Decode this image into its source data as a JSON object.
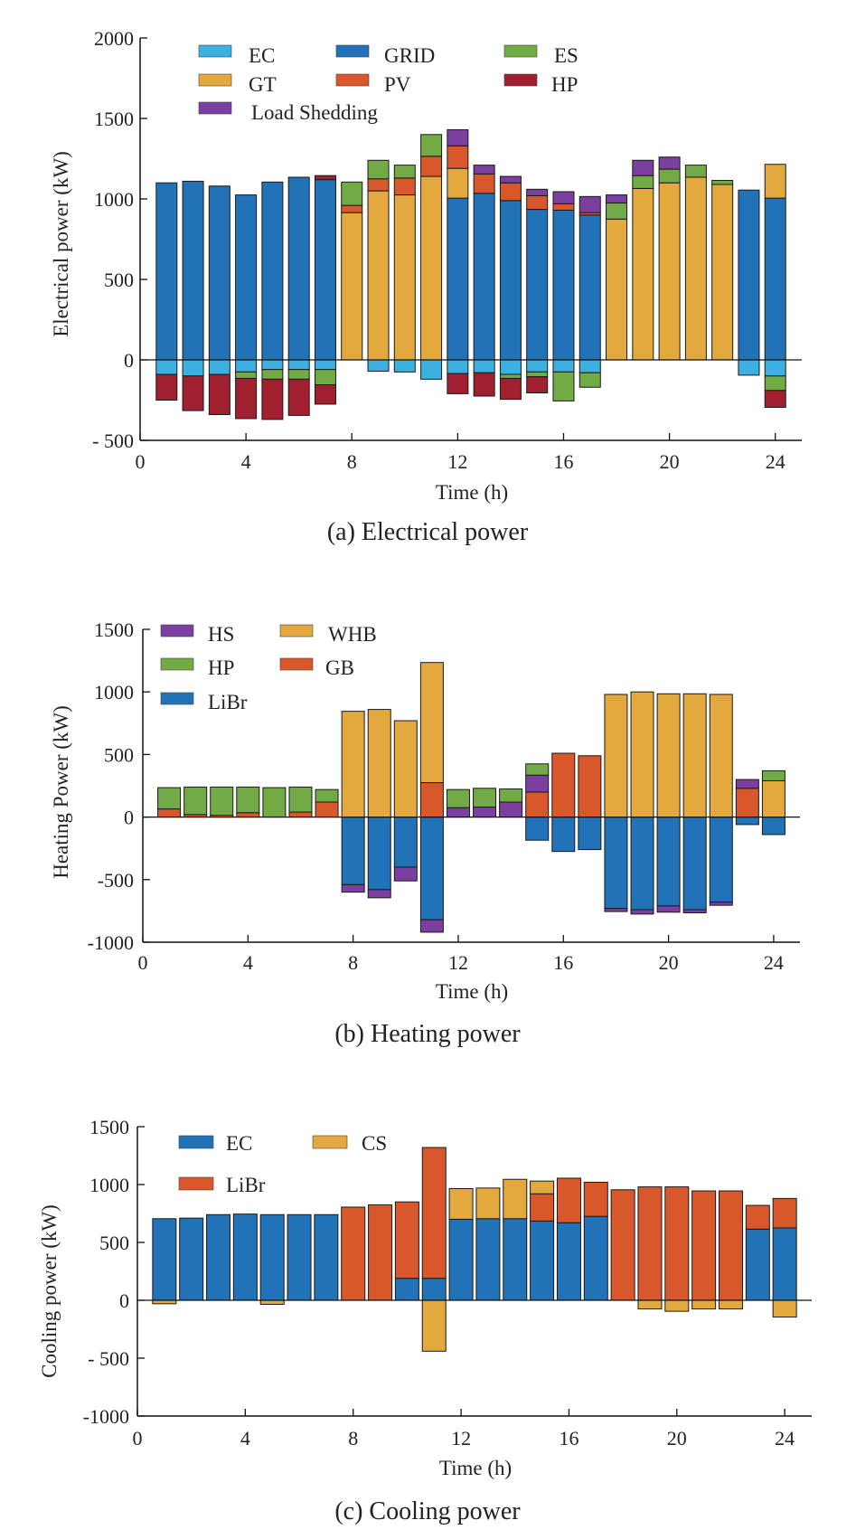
{
  "chart_data": [
    {
      "type": "bar",
      "stacked": true,
      "caption": "(a) Electrical power",
      "xlabel": "Time (h)",
      "ylabel": "Electrical power (kW)",
      "ylim": [
        -500,
        2000
      ],
      "yticks": [
        2000,
        1500,
        1000,
        500,
        0,
        -500
      ],
      "ytick_labels": [
        "2000",
        "1500",
        "1000",
        "500",
        "0",
        "- 500"
      ],
      "xlim": [
        0,
        25
      ],
      "xticks": [
        0,
        4,
        8,
        12,
        16,
        20,
        24
      ],
      "x": [
        1,
        2,
        3,
        4,
        5,
        6,
        7,
        8,
        9,
        10,
        11,
        12,
        13,
        14,
        15,
        16,
        17,
        18,
        19,
        20,
        21,
        22,
        23,
        24
      ],
      "legend_labels": [
        "EC",
        "GRID",
        "ES",
        "GT",
        "PV",
        "HP",
        "Load Shedding"
      ],
      "series": [
        {
          "name": "GRID",
          "color": "#2272b8",
          "values": [
            1100,
            1110,
            1080,
            1025,
            1105,
            1135,
            1120,
            0,
            0,
            0,
            0,
            1005,
            1035,
            990,
            935,
            930,
            900,
            0,
            0,
            0,
            0,
            0,
            1055,
            1005
          ]
        },
        {
          "name": "GT",
          "color": "#e3a93e",
          "values": [
            0,
            0,
            0,
            0,
            0,
            0,
            0,
            915,
            1050,
            1025,
            1140,
            185,
            0,
            0,
            0,
            0,
            0,
            875,
            1065,
            1100,
            1135,
            1090,
            0,
            210
          ]
        },
        {
          "name": "PV",
          "color": "#d9582b",
          "values": [
            0,
            0,
            0,
            0,
            0,
            0,
            0,
            45,
            75,
            105,
            125,
            140,
            120,
            110,
            85,
            40,
            15,
            0,
            0,
            0,
            0,
            0,
            0,
            0
          ]
        },
        {
          "name": "ES",
          "color": "#72ab45",
          "values": [
            0,
            0,
            0,
            0,
            0,
            0,
            0,
            145,
            115,
            80,
            135,
            0,
            0,
            0,
            0,
            0,
            0,
            100,
            80,
            85,
            75,
            25,
            0,
            0
          ]
        },
        {
          "name": "Load Shedding",
          "color": "#7b3fa0",
          "values": [
            0,
            0,
            0,
            0,
            0,
            0,
            0,
            0,
            0,
            0,
            0,
            100,
            55,
            40,
            40,
            75,
            100,
            50,
            95,
            75,
            0,
            0,
            0,
            0
          ]
        },
        {
          "name": "HP",
          "color": "#a02030",
          "values": [
            0,
            0,
            0,
            0,
            0,
            0,
            25,
            0,
            0,
            0,
            0,
            0,
            0,
            0,
            0,
            0,
            0,
            0,
            0,
            0,
            0,
            0,
            0,
            0
          ]
        },
        {
          "name": "EC",
          "color": "#3cb0e0",
          "values": [
            -90,
            -100,
            -90,
            -75,
            -60,
            -60,
            -60,
            0,
            -70,
            -75,
            -120,
            -85,
            -80,
            -90,
            -75,
            -75,
            -80,
            0,
            0,
            0,
            0,
            0,
            -95,
            -100
          ]
        },
        {
          "name": "ES",
          "color": "#72ab45",
          "values": [
            0,
            0,
            0,
            -40,
            -60,
            -60,
            -95,
            0,
            0,
            0,
            0,
            0,
            0,
            -25,
            -30,
            -180,
            -90,
            0,
            0,
            0,
            0,
            0,
            0,
            -90
          ]
        },
        {
          "name": "HP",
          "color": "#a02030",
          "values": [
            -160,
            -215,
            -250,
            -250,
            -250,
            -225,
            -120,
            0,
            0,
            0,
            0,
            -125,
            -145,
            -130,
            -100,
            0,
            0,
            0,
            0,
            0,
            0,
            0,
            0,
            -105
          ]
        }
      ]
    },
    {
      "type": "bar",
      "stacked": true,
      "caption": "(b) Heating power",
      "xlabel": "Time (h)",
      "ylabel": "Heating Power (kW)",
      "ylim": [
        -1000,
        1500
      ],
      "yticks": [
        1500,
        1000,
        500,
        0,
        -500,
        -1000
      ],
      "ytick_labels": [
        "1500",
        "1000",
        "500",
        "0",
        "-500",
        "-1000"
      ],
      "xlim": [
        0,
        25
      ],
      "xticks": [
        0,
        4,
        8,
        12,
        16,
        20,
        24
      ],
      "x": [
        1,
        2,
        3,
        4,
        5,
        6,
        7,
        8,
        9,
        10,
        11,
        12,
        13,
        14,
        15,
        16,
        17,
        18,
        19,
        20,
        21,
        22,
        23,
        24
      ],
      "legend_labels": [
        "HS",
        "WHB",
        "HP",
        "GB",
        "LiBr"
      ],
      "series": [
        {
          "name": "GB",
          "color": "#d9582b",
          "values": [
            65,
            20,
            15,
            35,
            0,
            40,
            120,
            0,
            0,
            0,
            275,
            0,
            0,
            0,
            200,
            510,
            490,
            0,
            0,
            0,
            0,
            0,
            230,
            0
          ]
        },
        {
          "name": "HS",
          "color": "#7b3fa0",
          "values": [
            0,
            0,
            0,
            0,
            0,
            0,
            0,
            0,
            0,
            0,
            0,
            75,
            80,
            120,
            135,
            0,
            0,
            0,
            0,
            0,
            0,
            0,
            70,
            0
          ]
        },
        {
          "name": "WHB",
          "color": "#e3a93e",
          "values": [
            0,
            0,
            0,
            0,
            0,
            0,
            0,
            845,
            860,
            770,
            960,
            0,
            0,
            0,
            0,
            0,
            0,
            980,
            1000,
            985,
            985,
            980,
            0,
            290
          ]
        },
        {
          "name": "HP",
          "color": "#72ab45",
          "values": [
            170,
            220,
            225,
            205,
            235,
            200,
            100,
            0,
            0,
            0,
            0,
            145,
            150,
            105,
            90,
            0,
            0,
            0,
            0,
            0,
            0,
            0,
            0,
            80
          ]
        },
        {
          "name": "LiBr",
          "color": "#2272b8",
          "values": [
            0,
            0,
            0,
            0,
            0,
            0,
            0,
            -540,
            -580,
            -400,
            -820,
            0,
            0,
            0,
            -185,
            -275,
            -260,
            -730,
            -740,
            -710,
            -740,
            -680,
            -60,
            -140
          ]
        },
        {
          "name": "HS",
          "color": "#7b3fa0",
          "values": [
            0,
            0,
            0,
            0,
            0,
            0,
            0,
            -60,
            -65,
            -110,
            -100,
            0,
            0,
            0,
            0,
            0,
            0,
            -25,
            -35,
            -50,
            -25,
            -25,
            0,
            0
          ]
        }
      ]
    },
    {
      "type": "bar",
      "stacked": true,
      "caption": "(c) Cooling power",
      "xlabel": "Time (h)",
      "ylabel": "Cooling power (kW)",
      "ylim": [
        -1000,
        1500
      ],
      "yticks": [
        1500,
        1000,
        500,
        0,
        -500,
        -1000
      ],
      "ytick_labels": [
        "1500",
        "1000",
        "500",
        "0",
        "- 500",
        "-1000"
      ],
      "xlim": [
        0,
        25
      ],
      "xticks": [
        0,
        4,
        8,
        12,
        16,
        20,
        24
      ],
      "x": [
        1,
        2,
        3,
        4,
        5,
        6,
        7,
        8,
        9,
        10,
        11,
        12,
        13,
        14,
        15,
        16,
        17,
        18,
        19,
        20,
        21,
        22,
        23,
        24
      ],
      "legend_labels": [
        "EC",
        "CS",
        "LiBr"
      ],
      "series": [
        {
          "name": "EC",
          "color": "#2272b8",
          "values": [
            705,
            710,
            740,
            745,
            740,
            740,
            740,
            0,
            0,
            190,
            190,
            700,
            705,
            705,
            685,
            670,
            725,
            0,
            0,
            0,
            0,
            0,
            615,
            625
          ]
        },
        {
          "name": "LiBr",
          "color": "#d9582b",
          "values": [
            0,
            0,
            0,
            0,
            0,
            0,
            0,
            805,
            825,
            660,
            1130,
            0,
            0,
            0,
            235,
            385,
            295,
            955,
            980,
            980,
            945,
            945,
            205,
            255
          ]
        },
        {
          "name": "CS",
          "color": "#e3a93e",
          "values": [
            0,
            0,
            0,
            0,
            0,
            0,
            0,
            0,
            0,
            0,
            0,
            265,
            265,
            340,
            110,
            0,
            0,
            0,
            0,
            0,
            0,
            0,
            0,
            0
          ]
        },
        {
          "name": "CS",
          "color": "#e3a93e",
          "values": [
            -30,
            0,
            0,
            0,
            -35,
            0,
            0,
            0,
            0,
            0,
            -440,
            0,
            0,
            0,
            0,
            0,
            0,
            0,
            -75,
            -95,
            -75,
            -75,
            0,
            -145
          ]
        }
      ]
    }
  ]
}
